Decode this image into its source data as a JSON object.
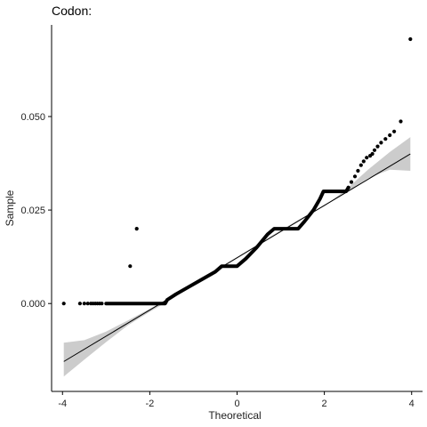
{
  "chart_data": {
    "type": "scatter",
    "title": "Codon:",
    "xlabel": "Theoretical",
    "ylabel": "Sample",
    "xlim": [
      -4.25,
      4.25
    ],
    "ylim": [
      -0.0235,
      0.0745
    ],
    "x_ticks": [
      {
        "value": -4,
        "label": "-4"
      },
      {
        "value": -2,
        "label": "-2"
      },
      {
        "value": 0,
        "label": "0"
      },
      {
        "value": 2,
        "label": "2"
      },
      {
        "value": 4,
        "label": "4"
      }
    ],
    "y_ticks": [
      {
        "value": 0.0,
        "label": "0.000"
      },
      {
        "value": 0.025,
        "label": "0.025"
      },
      {
        "value": 0.05,
        "label": "0.050"
      }
    ],
    "grid": false,
    "legend": "none",
    "colors": {
      "points": "#000000",
      "reference_line": "#000000",
      "confidence_band": "#cccccc",
      "axis": "#000000"
    },
    "series": [
      {
        "kind": "points",
        "points": [
          [
            -3.97,
            0.0
          ],
          [
            -3.6,
            0.0
          ],
          [
            -3.5,
            0.0
          ],
          [
            -3.42,
            0.0
          ],
          [
            -3.35,
            0.0
          ],
          [
            -3.3,
            0.0
          ],
          [
            -3.25,
            0.0
          ],
          [
            -3.2,
            0.0
          ],
          [
            -3.15,
            0.0
          ],
          [
            -3.1,
            0.0
          ],
          [
            -2.45,
            0.01
          ],
          [
            -2.3,
            0.02
          ],
          [
            2.55,
            0.031
          ],
          [
            2.62,
            0.0325
          ],
          [
            2.7,
            0.034
          ],
          [
            2.77,
            0.0355
          ],
          [
            2.84,
            0.037
          ],
          [
            2.9,
            0.038
          ],
          [
            2.97,
            0.039
          ],
          [
            3.05,
            0.0395
          ],
          [
            3.1,
            0.04
          ],
          [
            3.15,
            0.041
          ],
          [
            3.22,
            0.042
          ],
          [
            3.3,
            0.043
          ],
          [
            3.4,
            0.044
          ],
          [
            3.5,
            0.045
          ],
          [
            3.6,
            0.046
          ],
          [
            3.75,
            0.0487
          ],
          [
            3.97,
            0.0707
          ]
        ]
      },
      {
        "kind": "staircase",
        "points": [
          [
            -3.0,
            0.0
          ],
          [
            -1.65,
            0.0
          ],
          [
            -1.6,
            0.001
          ],
          [
            -1.4,
            0.0025
          ],
          [
            -1.1,
            0.0045
          ],
          [
            -0.8,
            0.0065
          ],
          [
            -0.5,
            0.0085
          ],
          [
            -0.35,
            0.01
          ],
          [
            0.0,
            0.01
          ],
          [
            0.2,
            0.012
          ],
          [
            0.45,
            0.015
          ],
          [
            0.7,
            0.0185
          ],
          [
            0.85,
            0.02
          ],
          [
            1.4,
            0.02
          ],
          [
            1.55,
            0.022
          ],
          [
            1.75,
            0.025
          ],
          [
            1.9,
            0.028
          ],
          [
            1.98,
            0.03
          ],
          [
            2.5,
            0.03
          ],
          [
            2.55,
            0.031
          ]
        ]
      },
      {
        "kind": "reference_line",
        "from": [
          -3.97,
          -0.0155
        ],
        "to": [
          3.97,
          0.04
        ]
      },
      {
        "kind": "confidence_band",
        "upper": [
          [
            -3.97,
            -0.0105
          ],
          [
            -3.5,
            -0.0098
          ],
          [
            -3.0,
            -0.0075
          ],
          [
            -2.5,
            -0.0045
          ],
          [
            -2.0,
            -0.0014
          ],
          [
            -1.5,
            0.0016
          ],
          [
            -1.0,
            0.0052
          ],
          [
            -0.5,
            0.0088
          ],
          [
            0.0,
            0.0124
          ],
          [
            0.5,
            0.016
          ],
          [
            1.0,
            0.0196
          ],
          [
            1.5,
            0.023
          ],
          [
            2.0,
            0.026
          ],
          [
            2.5,
            0.0305
          ],
          [
            3.0,
            0.0358
          ],
          [
            3.5,
            0.0405
          ],
          [
            3.97,
            0.0445
          ]
        ],
        "lower": [
          [
            3.97,
            0.0355
          ],
          [
            3.5,
            0.0358
          ],
          [
            3.0,
            0.0335
          ],
          [
            2.5,
            0.0298
          ],
          [
            2.0,
            0.0262
          ],
          [
            1.5,
            0.0228
          ],
          [
            1.0,
            0.0192
          ],
          [
            0.5,
            0.0156
          ],
          [
            0.0,
            0.012
          ],
          [
            -0.5,
            0.0084
          ],
          [
            -1.0,
            0.0048
          ],
          [
            -1.5,
            0.0012
          ],
          [
            -2.0,
            -0.0022
          ],
          [
            -2.5,
            -0.0058
          ],
          [
            -3.0,
            -0.0103
          ],
          [
            -3.5,
            -0.015
          ],
          [
            -3.97,
            -0.0195
          ]
        ]
      }
    ]
  }
}
